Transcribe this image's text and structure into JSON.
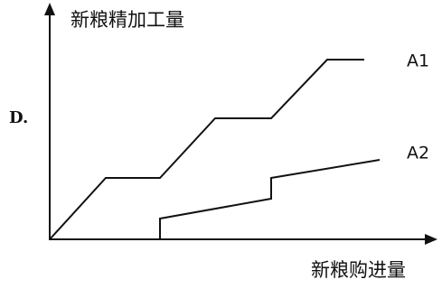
{
  "option_label": "D.",
  "y_axis_label": "新粮精加工量",
  "x_axis_label": "新粮购进量",
  "curves": [
    {
      "label": "A1"
    },
    {
      "label": "A2"
    }
  ]
}
